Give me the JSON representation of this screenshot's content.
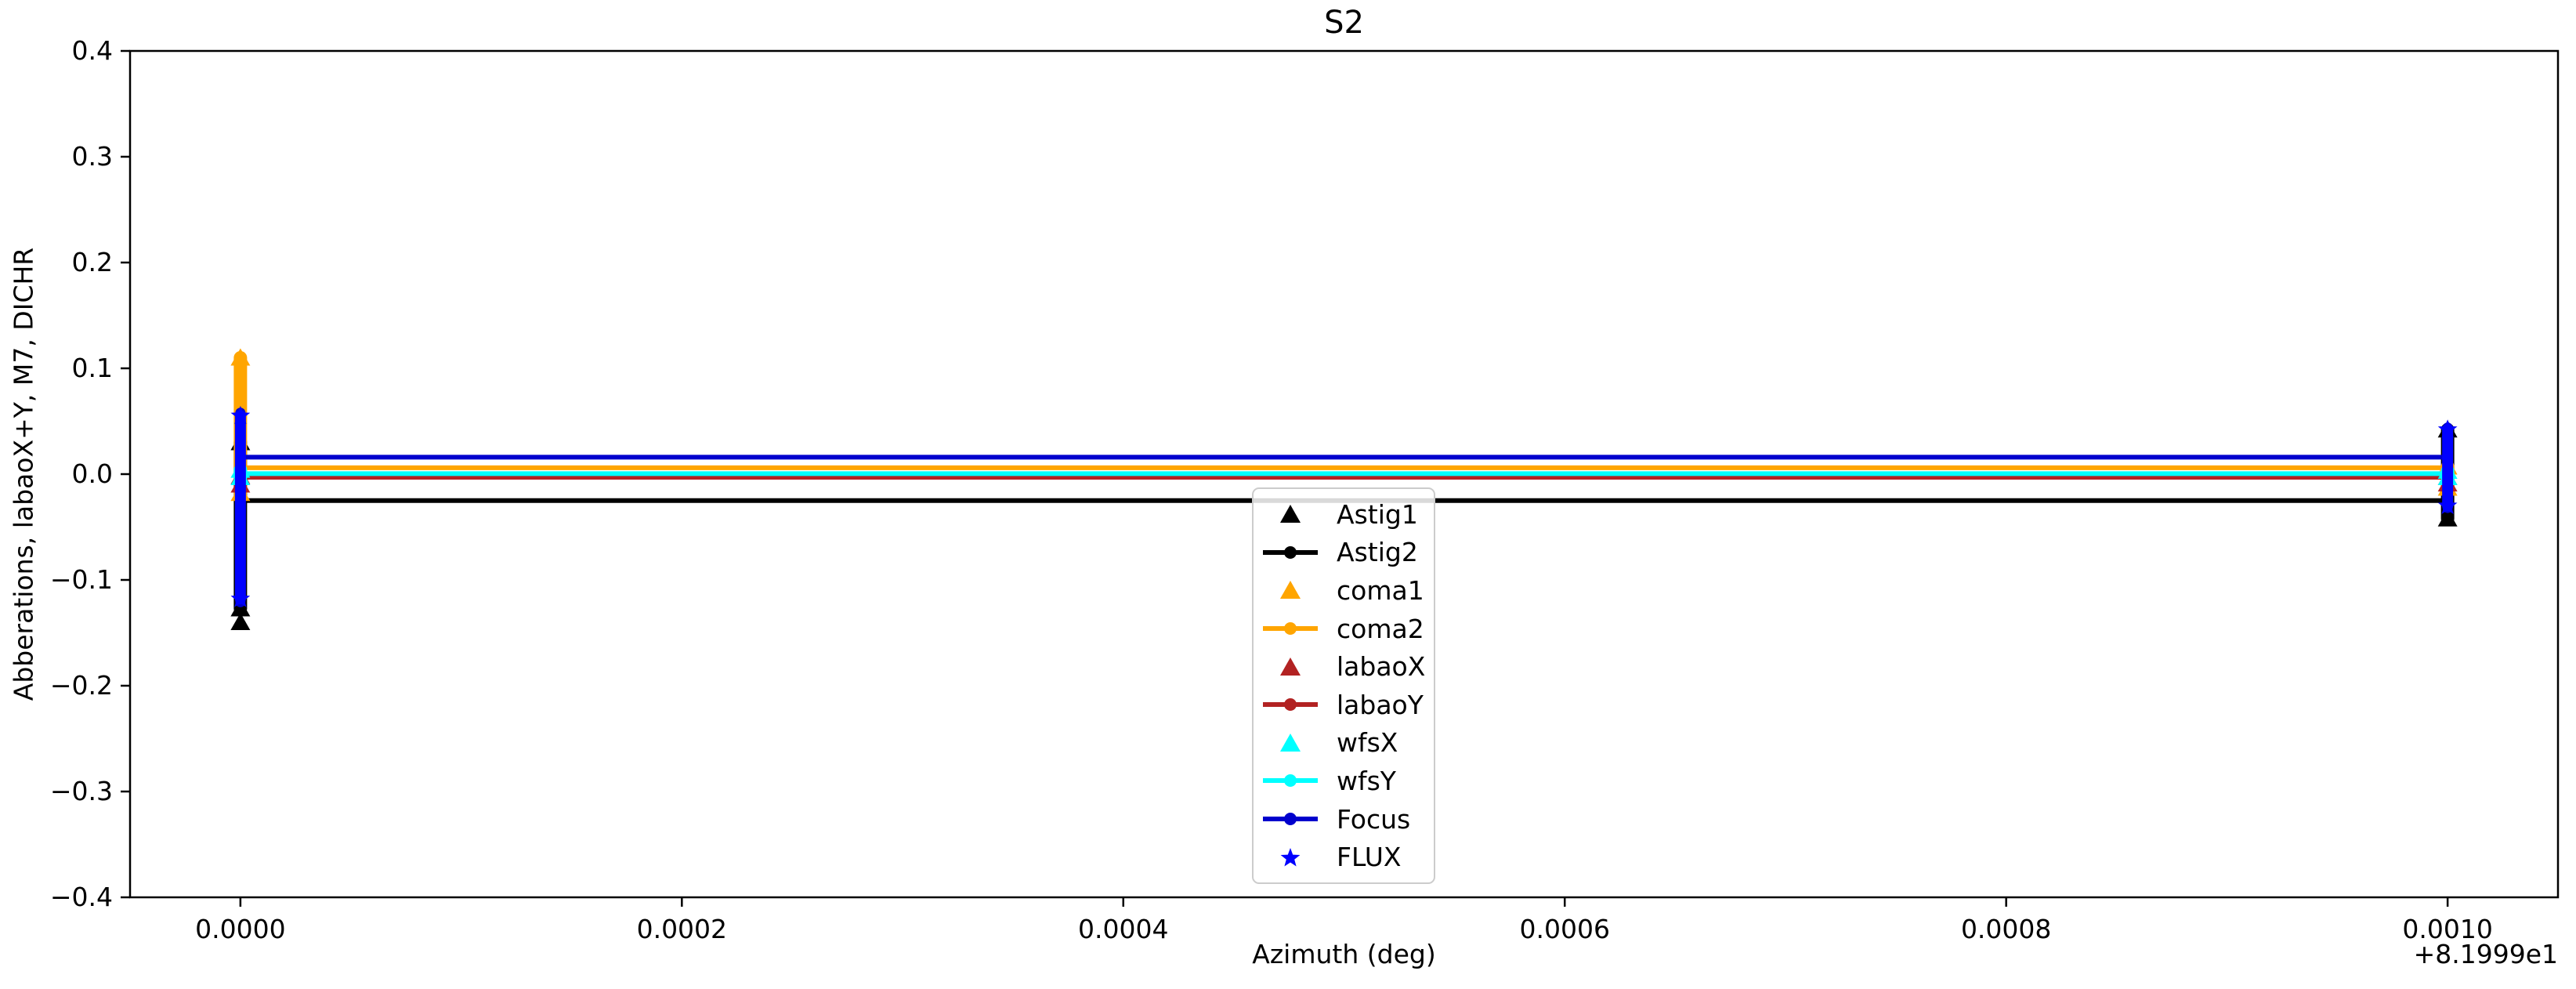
{
  "chart_data": {
    "type": "line",
    "title": "S2",
    "xlabel": "Azimuth (deg)",
    "ylabel": "Abberations, labaoX+Y, M7, DICHR",
    "x_offset_label": "+8.1999e1",
    "x_offset_value": 81.999,
    "xlim": [
      81.99895,
      82.00005
    ],
    "ylim": [
      -0.4,
      0.4
    ],
    "grid": false,
    "legend_position": "lower-center-inside",
    "xticks": {
      "values": [
        81.999,
        81.9992,
        81.9994,
        81.9996,
        81.9998,
        82.0
      ],
      "labels": [
        "0.0000",
        "0.0002",
        "0.0004",
        "0.0006",
        "0.0008",
        "0.0010"
      ]
    },
    "yticks": {
      "values": [
        -0.4,
        -0.3,
        -0.2,
        -0.1,
        0.0,
        0.1,
        0.2,
        0.3,
        0.4
      ],
      "labels": [
        "−0.4",
        "−0.3",
        "−0.2",
        "−0.1",
        "0.0",
        "0.1",
        "0.2",
        "0.3",
        "0.4"
      ]
    },
    "x_cluster_values": [
      81.999,
      82.0
    ],
    "series": [
      {
        "name": "Astig1",
        "color": "#000000",
        "marker": "triangle",
        "line": false,
        "clusters": [
          {
            "x": 81.999,
            "y_min": -0.127,
            "y_max": 0.03
          },
          {
            "x": 82.0,
            "y_min": -0.042,
            "y_max": 0.042
          }
        ],
        "outliers": [
          {
            "x": 81.999,
            "y": -0.14
          }
        ]
      },
      {
        "name": "Astig2",
        "color": "#000000",
        "marker": "dot",
        "line": true,
        "line_y": -0.025,
        "clusters": [
          {
            "x": 81.999,
            "y_min": -0.124,
            "y_max": 0.027
          },
          {
            "x": 82.0,
            "y_min": -0.039,
            "y_max": 0.036
          }
        ],
        "outliers": []
      },
      {
        "name": "coma1",
        "color": "#FFA500",
        "marker": "triangle",
        "line": false,
        "clusters": [
          {
            "x": 81.999,
            "y_min": -0.018,
            "y_max": 0.11
          },
          {
            "x": 82.0,
            "y_min": -0.013,
            "y_max": 0.007
          }
        ],
        "outliers": []
      },
      {
        "name": "coma2",
        "color": "#FFA500",
        "marker": "dot",
        "line": true,
        "line_y": 0.006,
        "clusters": [
          {
            "x": 81.999,
            "y_min": -0.016,
            "y_max": 0.06
          },
          {
            "x": 82.0,
            "y_min": -0.012,
            "y_max": 0.006
          }
        ],
        "outliers": []
      },
      {
        "name": "labaoX",
        "color": "#B22222",
        "marker": "triangle",
        "line": false,
        "clusters": [
          {
            "x": 81.999,
            "y_min": -0.01,
            "y_max": -0.002
          },
          {
            "x": 82.0,
            "y_min": -0.009,
            "y_max": -0.003
          }
        ],
        "outliers": []
      },
      {
        "name": "labaoY",
        "color": "#B22222",
        "marker": "dot",
        "line": true,
        "line_y": -0.003,
        "clusters": [
          {
            "x": 81.999,
            "y_min": -0.008,
            "y_max": -0.002
          },
          {
            "x": 82.0,
            "y_min": -0.008,
            "y_max": -0.003
          }
        ],
        "outliers": []
      },
      {
        "name": "wfsX",
        "color": "#00FFFF",
        "marker": "triangle",
        "line": false,
        "clusters": [
          {
            "x": 81.999,
            "y_min": -0.003,
            "y_max": 0.004
          },
          {
            "x": 82.0,
            "y_min": -0.003,
            "y_max": 0.003
          }
        ],
        "outliers": []
      },
      {
        "name": "wfsY",
        "color": "#00FFFF",
        "marker": "dot",
        "line": true,
        "line_y": 0.0005,
        "clusters": [
          {
            "x": 81.999,
            "y_min": -0.002,
            "y_max": 0.003
          },
          {
            "x": 82.0,
            "y_min": -0.002,
            "y_max": 0.002
          }
        ],
        "outliers": []
      },
      {
        "name": "Focus",
        "color": "#0000CD",
        "marker": "dot",
        "line": true,
        "line_y": 0.016,
        "clusters": [
          {
            "x": 81.999,
            "y_min": -0.121,
            "y_max": 0.058
          },
          {
            "x": 82.0,
            "y_min": -0.032,
            "y_max": 0.044
          }
        ],
        "outliers": []
      },
      {
        "name": "FLUX",
        "color": "#0000FF",
        "marker": "star",
        "line": false,
        "clusters": [
          {
            "x": 81.999,
            "y_min": -0.118,
            "y_max": 0.055
          },
          {
            "x": 82.0,
            "y_min": -0.03,
            "y_max": 0.042
          }
        ],
        "outliers": []
      }
    ]
  }
}
